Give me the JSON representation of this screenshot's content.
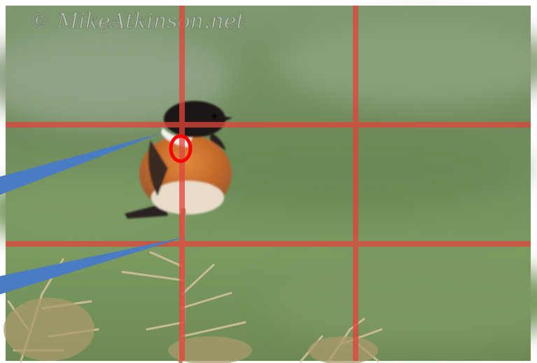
{
  "watermark": "© MikeAtkinson.net"
}
